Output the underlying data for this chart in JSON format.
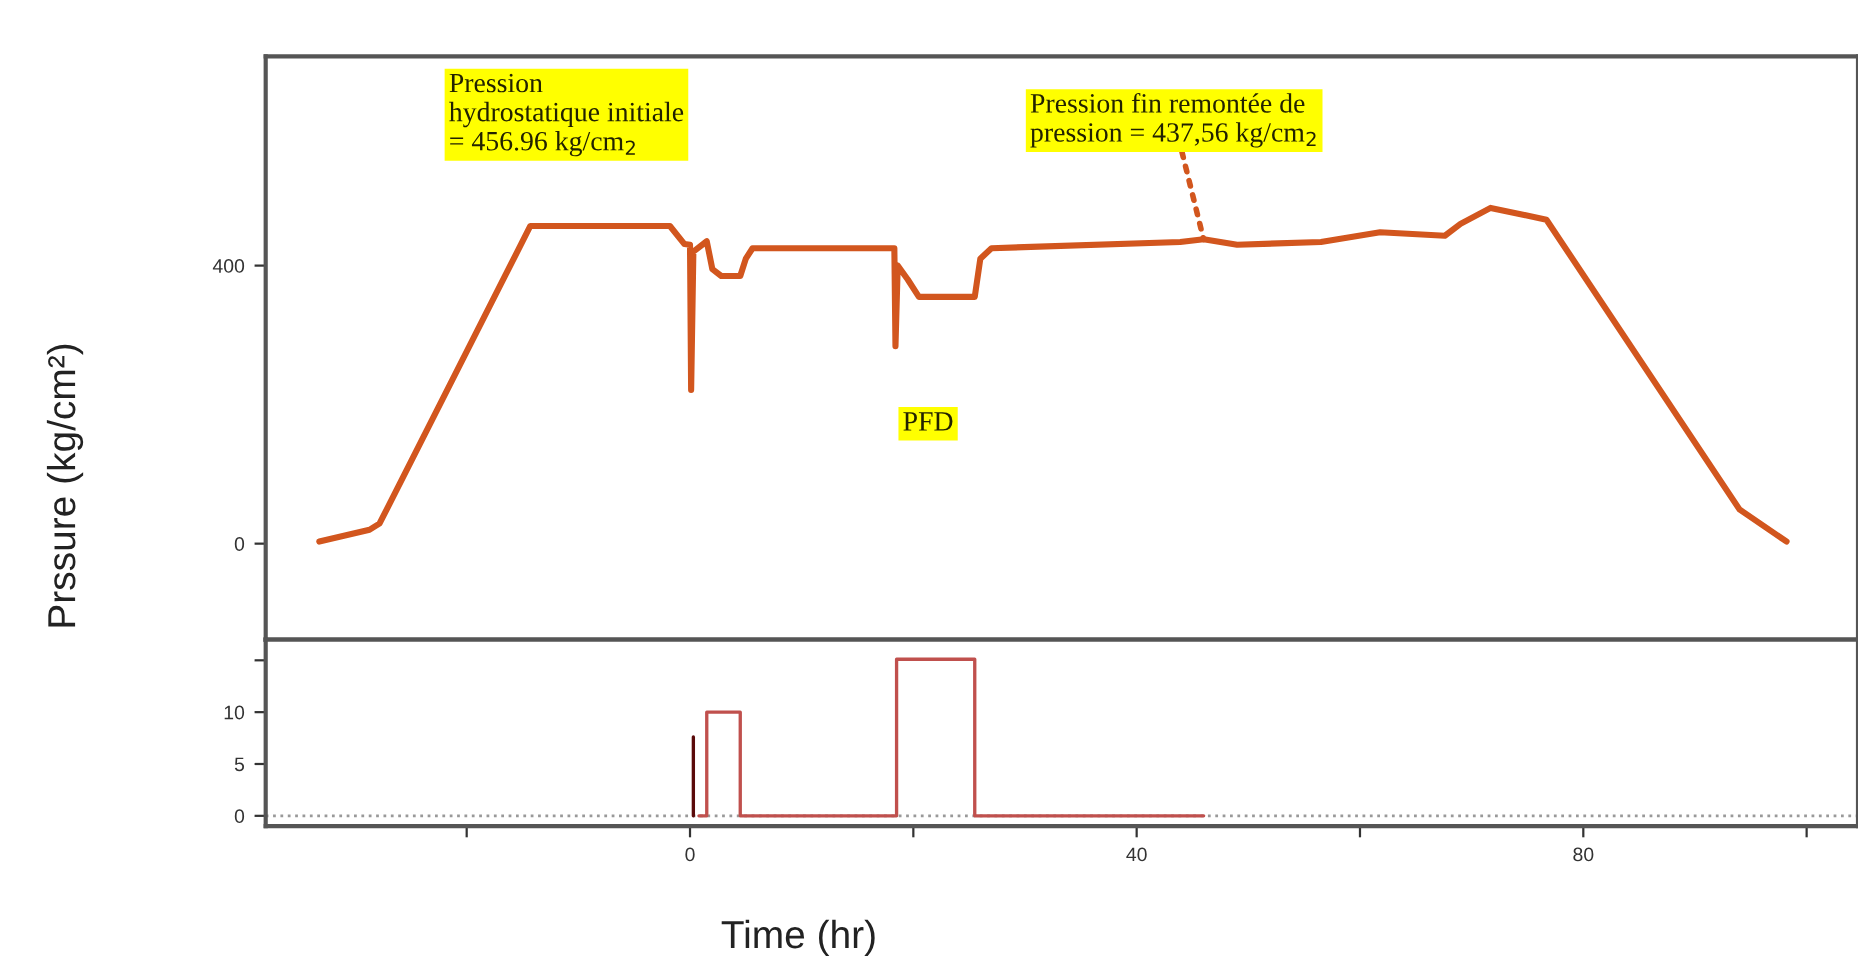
{
  "chart_data": [
    {
      "type": "line",
      "ylabel": "Prssure (kg/cm²)",
      "xlim": [
        -38,
        104.6
      ],
      "ylim": [
        -138,
        701
      ],
      "xticks": [
        {
          "value": -20,
          "label": null
        },
        0,
        {
          "value": 20,
          "label": null
        },
        40,
        {
          "value": 60,
          "label": null
        },
        80,
        {
          "value": 100,
          "label": null
        }
      ],
      "yticks": [
        0,
        400
      ],
      "tick_labels": "y",
      "grid": false,
      "legend": false,
      "series": [
        {
          "color": "#d2561e",
          "x": [
            -33.2,
            -28.7,
            -27.8,
            -14.3,
            -1.8,
            -0.5,
            0,
            0.1,
            0.3,
            1.5,
            2,
            2.8,
            4.5,
            5,
            5.6,
            18.3,
            18.4,
            18.6,
            19.5,
            20.5,
            25.5,
            26,
            27,
            43.9,
            46,
            49,
            56.5,
            61.8,
            67.6,
            69,
            71.7,
            76.7,
            94,
            98.2
          ],
          "values": [
            3,
            20,
            29,
            457,
            457,
            431,
            430,
            221,
            420,
            435,
            395,
            385,
            385,
            410,
            425,
            425,
            284,
            400,
            380,
            355,
            355,
            410,
            425,
            434,
            438,
            430,
            434,
            448,
            443,
            460,
            483,
            466,
            49,
            3
          ]
        }
      ],
      "annotations": [
        "Pression\nhydrostatique initiale\n= 456.96 kg/cm$_{2}$",
        {
          "text": "Pression fin remontée de\npression = 437,56 kg/cm$_{2}$",
          "x": 46,
          "y": 437.56
        },
        "PFD"
      ]
    },
    {
      "type": "step",
      "xlabel": "Time (hr)",
      "xlim": [
        -38,
        104.6
      ],
      "ylim": [
        -1,
        17
      ],
      "xticks": [
        {
          "value": -20,
          "label": null
        },
        0,
        {
          "value": 20,
          "label": null
        },
        40,
        {
          "value": 60,
          "label": null
        },
        80,
        {
          "value": 100,
          "label": null
        }
      ],
      "yticks": [
        0,
        5,
        10,
        {
          "value": 15,
          "label": null
        }
      ],
      "grid": false,
      "legend": false,
      "ref_lines": [
        {
          "axis": "y",
          "value": 0,
          "color": "#999999",
          "line_style": "dotted"
        }
      ],
      "series": [
        {
          "color": "#c0504d",
          "x": [
            0.8,
            1.5,
            4.5,
            18.5,
            25.5,
            46
          ],
          "values": [
            0,
            10,
            0,
            15.1,
            0,
            0
          ]
        },
        {
          "color": "#5a0a0a",
          "x": [
            0.3,
            0.3
          ],
          "values": [
            0,
            7.6
          ]
        }
      ]
    }
  ]
}
